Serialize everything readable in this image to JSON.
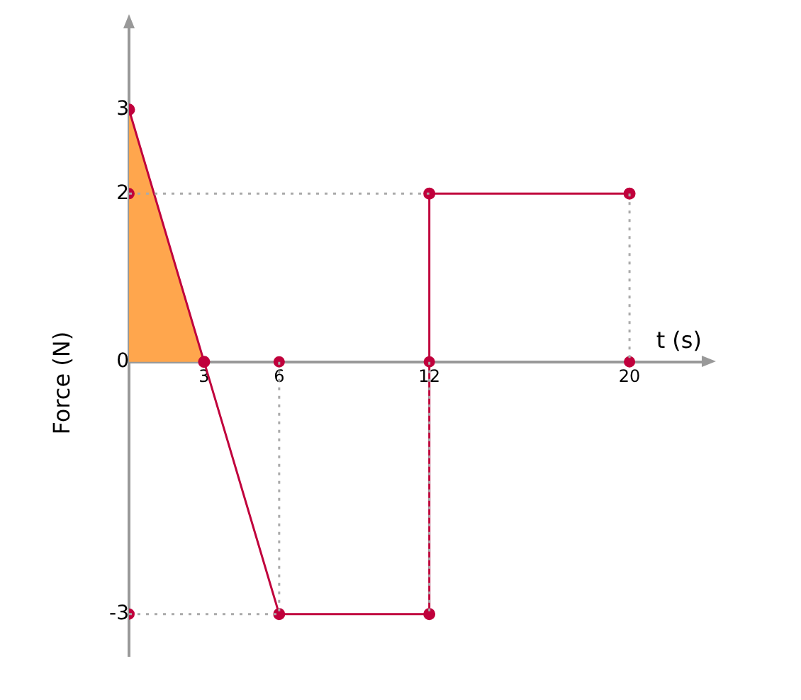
{
  "chart_data": {
    "type": "line",
    "xlabel": "t (s)",
    "ylabel": "Force (N)",
    "xlim": [
      0,
      23
    ],
    "ylim": [
      -3.5,
      4
    ],
    "xticks": [
      3,
      6,
      12,
      20
    ],
    "yticks": [
      -3,
      0,
      2,
      3
    ],
    "grid": false,
    "legend": false,
    "series": [
      {
        "type": "line",
        "color": "#aaaaaa",
        "line_style": "dotted",
        "marker": "none",
        "x": [
          0,
          12
        ],
        "values": [
          2,
          2
        ]
      },
      {
        "type": "line",
        "color": "#aaaaaa",
        "line_style": "dotted",
        "marker": "none",
        "x": [
          20,
          20
        ],
        "values": [
          2,
          0
        ]
      },
      {
        "type": "line",
        "color": "#aaaaaa",
        "line_style": "dotted",
        "marker": "none",
        "x": [
          6,
          6
        ],
        "values": [
          0,
          -3
        ]
      },
      {
        "type": "line",
        "color": "#aaaaaa",
        "line_style": "dotted",
        "marker": "none",
        "x": [
          0,
          6
        ],
        "values": [
          -3,
          -3
        ]
      },
      {
        "type": "line",
        "color": "#aaaaaa",
        "line_style": "dotted",
        "marker": "none",
        "x": [
          12,
          12
        ],
        "values": [
          0,
          -3
        ]
      },
      {
        "type": "area",
        "color": "#ffa64d",
        "marker": "none",
        "x": [
          0,
          3
        ],
        "values": [
          3,
          0
        ]
      },
      {
        "color": "#c0003c",
        "marker": "circle",
        "line_style": "solid",
        "x": [
          0,
          3,
          6,
          12,
          12,
          20
        ],
        "values": [
          3,
          0,
          -3,
          -3,
          2,
          2
        ]
      },
      {
        "type": "scatter",
        "color": "#c0003c",
        "marker": "circle",
        "x": [
          0,
          6,
          12,
          20,
          0
        ],
        "values": [
          2,
          0,
          0,
          0,
          -3
        ]
      }
    ]
  }
}
